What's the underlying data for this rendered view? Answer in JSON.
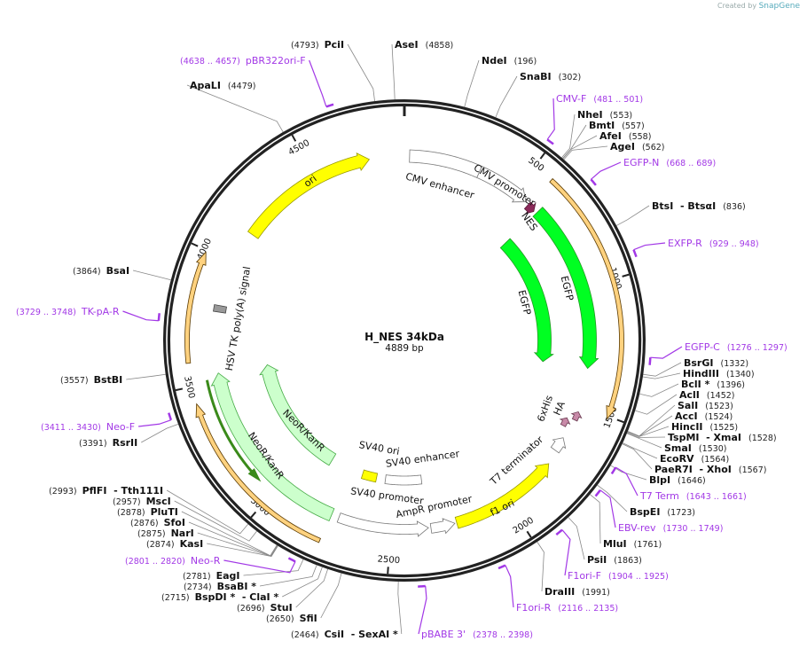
{
  "credit": {
    "prefix": "Created by",
    "brand": "SnapGene"
  },
  "plasmid": {
    "name": "H_NES 34kDa",
    "length_label": "4889 bp",
    "length": 4889
  },
  "ticks": [
    {
      "bp": 500,
      "label": "500"
    },
    {
      "bp": 1000,
      "label": "1000"
    },
    {
      "bp": 1500,
      "label": "1500"
    },
    {
      "bp": 2000,
      "label": "2000"
    },
    {
      "bp": 2500,
      "label": "2500"
    },
    {
      "bp": 3000,
      "label": "3000"
    },
    {
      "bp": 3500,
      "label": "3500"
    },
    {
      "bp": 4000,
      "label": "4000"
    },
    {
      "bp": 4500,
      "label": "4500"
    }
  ],
  "features": [
    {
      "name": "CMV enhancer",
      "start": 22,
      "end": 326,
      "dir": 0,
      "fill": "#ffffff",
      "stroke": "#777777"
    },
    {
      "name": "CMV promoter",
      "start": 326,
      "end": 560,
      "dir": 1,
      "fill": "#ffffff",
      "stroke": "#777777"
    },
    {
      "name": "NES",
      "start": 575,
      "end": 612,
      "dir": 1,
      "fill": "#8b2a5a",
      "stroke": "#5a1a3a"
    },
    {
      "name": "EGFP",
      "start": 625,
      "end": 1340,
      "dir": 1,
      "fill": "#00ff22",
      "stroke": "#229922"
    },
    {
      "name": "EGFP",
      "start": 625,
      "end": 1340,
      "dir": 1,
      "fill": "#00ff22",
      "stroke": "#229922"
    },
    {
      "name": "",
      "start": 577,
      "end": 1510,
      "dir": 1,
      "fill": "#ffd27f",
      "stroke": "#5a3a00"
    },
    {
      "name": "6xHis",
      "start": 1525,
      "end": 1562,
      "dir": -1,
      "fill": "#c88aa8",
      "stroke": "#6a3a50"
    },
    {
      "name": "HA",
      "start": 1568,
      "end": 1605,
      "dir": -1,
      "fill": "#c88aa8",
      "stroke": "#6a3a50"
    },
    {
      "name": "T7 terminator",
      "start": 1650,
      "end": 1712,
      "dir": -1,
      "fill": "#ffffff",
      "stroke": "#777777"
    },
    {
      "name": "f1 ori",
      "start": 1772,
      "end": 2227,
      "dir": -1,
      "fill": "#ffff00",
      "stroke": "#999900"
    },
    {
      "name": "AmpR promoter",
      "start": 2235,
      "end": 2335,
      "dir": -1,
      "fill": "#ffffff",
      "stroke": "#777777"
    },
    {
      "name": "SV40 promoter",
      "start": 2345,
      "end": 2720,
      "dir": -1,
      "fill": "#ffffff",
      "stroke": "#777777"
    },
    {
      "name": "SV40 enhancer",
      "start": 2350,
      "end": 2550,
      "dir": 0,
      "fill": "#ffffff",
      "stroke": "#777777"
    },
    {
      "name": "SV40 ori",
      "start": 2600,
      "end": 2680,
      "dir": 0,
      "fill": "#ffff00",
      "stroke": "#999900"
    },
    {
      "name": "NeoR/KanR",
      "start": 2752,
      "end": 3532,
      "dir": 1,
      "fill": "#ccffcc",
      "stroke": "#44aa44"
    },
    {
      "name": "NeoR/KanR",
      "start": 2867,
      "end": 3530,
      "dir": 1,
      "fill": "#ccffcc",
      "stroke": "#44aa44"
    },
    {
      "name": "",
      "start": 3070,
      "end": 3510,
      "dir": -1,
      "fill": "#3a8a1a",
      "stroke": "#3a8a1a"
    },
    {
      "name": "",
      "start": 2756,
      "end": 3436,
      "dir": 1,
      "fill": "#ffd27f",
      "stroke": "#5a3a00"
    },
    {
      "name": "",
      "start": 3585,
      "end": 3993,
      "dir": 1,
      "fill": "#ffd27f",
      "stroke": "#5a3a00"
    },
    {
      "name": "HSV TK poly(A) signal",
      "start": 3785,
      "end": 3812,
      "dir": 0,
      "fill": "#999999",
      "stroke": "#444444"
    },
    {
      "name": "ori",
      "start": 4140,
      "end": 4740,
      "dir": 1,
      "fill": "#ffff00",
      "stroke": "#999900"
    }
  ],
  "labels": [
    {
      "type": "enzyme",
      "name": "PciI",
      "pos": "(4793)",
      "bp": 4793
    },
    {
      "type": "enzyme",
      "name": "AseI",
      "pos": "(4858)",
      "bp": 4858
    },
    {
      "type": "enzyme",
      "name": "NdeI",
      "pos": "(196)",
      "bp": 196
    },
    {
      "type": "enzyme",
      "name": "SnaBI",
      "pos": "(302)",
      "bp": 302
    },
    {
      "type": "primer",
      "name": "CMV-F",
      "pos": "(481 .. 501)",
      "bp": 481
    },
    {
      "type": "enzyme",
      "name": "NheI",
      "pos": "(553)",
      "bp": 553
    },
    {
      "type": "enzyme",
      "name": "BmtI",
      "pos": "(557)",
      "bp": 557
    },
    {
      "type": "enzyme",
      "name": "AfeI",
      "pos": "(558)",
      "bp": 558
    },
    {
      "type": "enzyme",
      "name": "AgeI",
      "pos": "(562)",
      "bp": 562
    },
    {
      "type": "primer",
      "name": "EGFP-N",
      "pos": "(668 .. 689)",
      "bp": 668
    },
    {
      "type": "enzyme",
      "name": "BtsI  - BtsαI",
      "pos": "(836)",
      "bp": 836
    },
    {
      "type": "primer",
      "name": "EXFP-R",
      "pos": "(929 .. 948)",
      "bp": 929
    },
    {
      "type": "primer",
      "name": "EGFP-C",
      "pos": "(1276 .. 1297)",
      "bp": 1276
    },
    {
      "type": "enzyme",
      "name": "BsrGI",
      "pos": "(1332)",
      "bp": 1332
    },
    {
      "type": "enzyme",
      "name": "HindIII",
      "pos": "(1340)",
      "bp": 1340
    },
    {
      "type": "enzyme",
      "name": "BclI *",
      "pos": "(1396)",
      "bp": 1396
    },
    {
      "type": "enzyme",
      "name": "AclI",
      "pos": "(1452)",
      "bp": 1452
    },
    {
      "type": "enzyme",
      "name": "SalI",
      "pos": "(1523)",
      "bp": 1523
    },
    {
      "type": "enzyme",
      "name": "AccI",
      "pos": "(1524)",
      "bp": 1524
    },
    {
      "type": "enzyme",
      "name": "HincII",
      "pos": "(1525)",
      "bp": 1525
    },
    {
      "type": "enzyme",
      "name": "TspMI  - XmaI",
      "pos": "(1528)",
      "bp": 1528
    },
    {
      "type": "enzyme",
      "name": "SmaI",
      "pos": "(1530)",
      "bp": 1530
    },
    {
      "type": "enzyme",
      "name": "EcoRV",
      "pos": "(1564)",
      "bp": 1564
    },
    {
      "type": "enzyme",
      "name": "PaeR7I  - XhoI",
      "pos": "(1567)",
      "bp": 1567
    },
    {
      "type": "enzyme",
      "name": "BlpI",
      "pos": "(1646)",
      "bp": 1646
    },
    {
      "type": "primer",
      "name": "T7 Term",
      "pos": "(1643 .. 1661)",
      "bp": 1643
    },
    {
      "type": "enzyme",
      "name": "BspEI",
      "pos": "(1723)",
      "bp": 1723
    },
    {
      "type": "primer",
      "name": "EBV-rev",
      "pos": "(1730 .. 1749)",
      "bp": 1730
    },
    {
      "type": "enzyme",
      "name": "MluI",
      "pos": "(1761)",
      "bp": 1761
    },
    {
      "type": "enzyme",
      "name": "PsiI",
      "pos": "(1863)",
      "bp": 1863
    },
    {
      "type": "primer",
      "name": "F1ori-F",
      "pos": "(1904 .. 1925)",
      "bp": 1904
    },
    {
      "type": "enzyme",
      "name": "DraIII",
      "pos": "(1991)",
      "bp": 1991
    },
    {
      "type": "primer",
      "name": "F1ori-R",
      "pos": "(2116 .. 2135)",
      "bp": 2116
    },
    {
      "type": "primer",
      "name": "pBABE 3'",
      "pos": "(2378 .. 2398)",
      "bp": 2378
    },
    {
      "type": "enzyme",
      "name": "CsiI  - SexAI *",
      "pos": "(2464)",
      "bp": 2464
    },
    {
      "type": "enzyme",
      "name": "SfiI",
      "pos": "(2650)",
      "bp": 2650
    },
    {
      "type": "enzyme",
      "name": "StuI",
      "pos": "(2696)",
      "bp": 2696
    },
    {
      "type": "enzyme",
      "name": "BspDI *  - ClaI *",
      "pos": "(2715)",
      "bp": 2715
    },
    {
      "type": "enzyme",
      "name": "BsaBI *",
      "pos": "(2734)",
      "bp": 2734
    },
    {
      "type": "enzyme",
      "name": "EagI",
      "pos": "(2781)",
      "bp": 2781
    },
    {
      "type": "primer",
      "name": "Neo-R",
      "pos": "(2801 .. 2820)",
      "bp": 2801
    },
    {
      "type": "enzyme",
      "name": "KasI",
      "pos": "(2874)",
      "bp": 2874
    },
    {
      "type": "enzyme",
      "name": "NarI",
      "pos": "(2875)",
      "bp": 2875
    },
    {
      "type": "enzyme",
      "name": "SfoI",
      "pos": "(2876)",
      "bp": 2876
    },
    {
      "type": "enzyme",
      "name": "PluTI",
      "pos": "(2878)",
      "bp": 2878
    },
    {
      "type": "enzyme",
      "name": "MscI",
      "pos": "(2957)",
      "bp": 2957
    },
    {
      "type": "enzyme",
      "name": "PflFI  - Tth111I",
      "pos": "(2993)",
      "bp": 2993
    },
    {
      "type": "enzyme",
      "name": "RsrII",
      "pos": "(3391)",
      "bp": 3391
    },
    {
      "type": "primer",
      "name": "Neo-F",
      "pos": "(3411 .. 3430)",
      "bp": 3411
    },
    {
      "type": "enzyme",
      "name": "BstBI",
      "pos": "(3557)",
      "bp": 3557
    },
    {
      "type": "primer",
      "name": "TK-pA-R",
      "pos": "(3729 .. 3748)",
      "bp": 3729
    },
    {
      "type": "enzyme",
      "name": "BsaI",
      "pos": "(3864)",
      "bp": 3864
    },
    {
      "type": "enzyme",
      "name": "ApaLI",
      "pos": "(4479)",
      "bp": 4479
    },
    {
      "type": "primer",
      "name": "pBR322ori-F",
      "pos": "(4638 .. 4657)",
      "bp": 4638
    }
  ]
}
